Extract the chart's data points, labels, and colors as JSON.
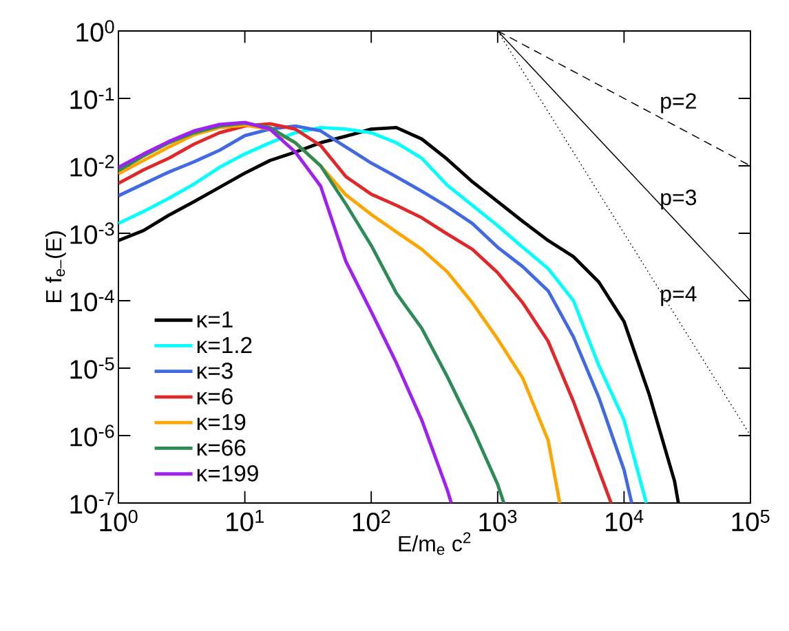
{
  "chart_data": {
    "type": "line",
    "log": "xy",
    "xlabel": "E/m$_{e}$ c$^{2}$",
    "ylabel": "E f$_{e–}$(E)",
    "legend": "bottom left",
    "grid": false,
    "marker": "none",
    "xlim": [
      1,
      100000
    ],
    "ylim": [
      1e-07,
      1
    ],
    "xticks": [
      {
        "value": 1,
        "label": "10$^{0}$"
      },
      {
        "value": 10,
        "label": "10$^{1}$"
      },
      {
        "value": 100,
        "label": "10$^{2}$"
      },
      {
        "value": 1000,
        "label": "10$^{3}$"
      },
      {
        "value": 10000,
        "label": "10$^{4}$"
      },
      {
        "value": 100000,
        "label": "10$^{5}$"
      }
    ],
    "yticks": [
      {
        "value": 1e-07,
        "label": "10$^{-7}$"
      },
      {
        "value": 1e-06,
        "label": "10$^{-6}$"
      },
      {
        "value": 1e-05,
        "label": "10$^{-5}$"
      },
      {
        "value": 0.0001,
        "label": "10$^{-4}$"
      },
      {
        "value": 0.001,
        "label": "10$^{-3}$"
      },
      {
        "value": 0.01,
        "label": "10$^{-2}$"
      },
      {
        "value": 0.1,
        "label": "10$^{-1}$"
      },
      {
        "value": 1,
        "label": "10$^{0}$"
      }
    ],
    "series": [
      {
        "name": "κ=1",
        "color": "#000000",
        "x": [
          1,
          1.58,
          2.51,
          3.98,
          6.31,
          10,
          15.8,
          25.1,
          39.8,
          63.1,
          100,
          158,
          251,
          398,
          631,
          1000,
          1580,
          2510,
          3980,
          6310,
          10000,
          15800,
          25100,
          26900
        ],
        "values": [
          0.00078,
          0.0011,
          0.00186,
          0.00295,
          0.0048,
          0.0078,
          0.012,
          0.016,
          0.022,
          0.0275,
          0.035,
          0.037,
          0.025,
          0.0126,
          0.0058,
          0.00295,
          0.0015,
          0.00078,
          0.00045,
          0.00019,
          4.9e-05,
          4.1e-06,
          2.1e-07,
          1e-07
        ]
      },
      {
        "name": "κ=1.2",
        "color": "#00ffff",
        "x": [
          1,
          1.58,
          2.51,
          3.98,
          6.31,
          10,
          15.8,
          25.1,
          39.8,
          63.1,
          100,
          158,
          251,
          398,
          631,
          1000,
          1580,
          2510,
          3980,
          6310,
          10000,
          15000
        ],
        "values": [
          0.0014,
          0.0021,
          0.0033,
          0.0054,
          0.0095,
          0.015,
          0.022,
          0.031,
          0.037,
          0.035,
          0.031,
          0.022,
          0.013,
          0.0052,
          0.0026,
          0.0013,
          0.00062,
          0.0003,
          0.0001,
          1.1e-05,
          1.7e-06,
          1e-07
        ]
      },
      {
        "name": "κ=3",
        "color": "#4169e1",
        "x": [
          1,
          1.58,
          2.51,
          3.98,
          6.31,
          10,
          15.8,
          25.1,
          39.8,
          63.1,
          100,
          158,
          251,
          398,
          631,
          1000,
          1580,
          2510,
          3980,
          6310,
          10000,
          11500
        ],
        "values": [
          0.0036,
          0.0054,
          0.0081,
          0.0115,
          0.017,
          0.028,
          0.035,
          0.039,
          0.033,
          0.019,
          0.011,
          0.0069,
          0.0042,
          0.0025,
          0.0014,
          0.00062,
          0.00032,
          0.00014,
          2.9e-05,
          3.7e-06,
          3.1e-07,
          1e-07
        ]
      },
      {
        "name": "κ=6",
        "color": "#e0282a",
        "x": [
          1,
          1.58,
          2.51,
          3.98,
          6.31,
          10,
          15.8,
          25.1,
          39.8,
          63.1,
          100,
          158,
          251,
          398,
          631,
          1000,
          1580,
          2510,
          3980,
          6310,
          7900
        ],
        "values": [
          0.0055,
          0.0087,
          0.013,
          0.021,
          0.031,
          0.039,
          0.042,
          0.035,
          0.02,
          0.0069,
          0.0038,
          0.0026,
          0.0017,
          0.00098,
          0.00058,
          0.00026,
          9.3e-05,
          2.5e-05,
          3.2e-06,
          3.1e-07,
          1e-07
        ]
      },
      {
        "name": "κ=19",
        "color": "#ffa500",
        "x": [
          1,
          1.58,
          2.51,
          3.98,
          6.31,
          10,
          15.8,
          25.1,
          39.8,
          63.1,
          100,
          158,
          251,
          398,
          631,
          1000,
          1580,
          2510,
          3100
        ],
        "values": [
          0.0076,
          0.012,
          0.019,
          0.029,
          0.037,
          0.04,
          0.035,
          0.022,
          0.01,
          0.0037,
          0.0019,
          0.00105,
          0.00058,
          0.00027,
          9.3e-05,
          2.7e-05,
          7.1e-06,
          8.5e-07,
          1e-07
        ]
      },
      {
        "name": "κ=66",
        "color": "#2e8b57",
        "x": [
          1,
          1.58,
          2.51,
          3.98,
          6.31,
          10,
          15.8,
          25.1,
          39.8,
          63.1,
          100,
          158,
          251,
          398,
          631,
          1000,
          1120
        ],
        "values": [
          0.0085,
          0.014,
          0.022,
          0.031,
          0.039,
          0.043,
          0.037,
          0.022,
          0.01,
          0.0027,
          0.00066,
          0.00013,
          3.9e-05,
          7.6e-06,
          1.3e-06,
          1.9e-07,
          1e-07
        ]
      },
      {
        "name": "κ=199",
        "color": "#a020f0",
        "x": [
          1,
          1.58,
          2.51,
          3.98,
          6.31,
          10,
          15.8,
          25.1,
          39.8,
          63.1,
          100,
          158,
          251,
          398,
          430
        ],
        "values": [
          0.0095,
          0.015,
          0.023,
          0.033,
          0.041,
          0.044,
          0.035,
          0.016,
          0.005,
          0.00038,
          6.9e-05,
          1.2e-05,
          1.7e-06,
          1.6e-07,
          1e-07
        ]
      },
      {
        "color": "#000000",
        "line_style": "dashed",
        "x": [
          1000,
          100000
        ],
        "values": [
          1,
          0.01
        ]
      },
      {
        "color": "#000000",
        "line_style": "solid",
        "x": [
          1000,
          100000
        ],
        "values": [
          1,
          0.0001
        ]
      },
      {
        "color": "#000000",
        "line_style": "dotted",
        "x": [
          1000,
          100000
        ],
        "values": [
          1,
          1e-06
        ]
      }
    ],
    "annotations": [
      "p=2",
      "p=3",
      "p=4"
    ]
  }
}
